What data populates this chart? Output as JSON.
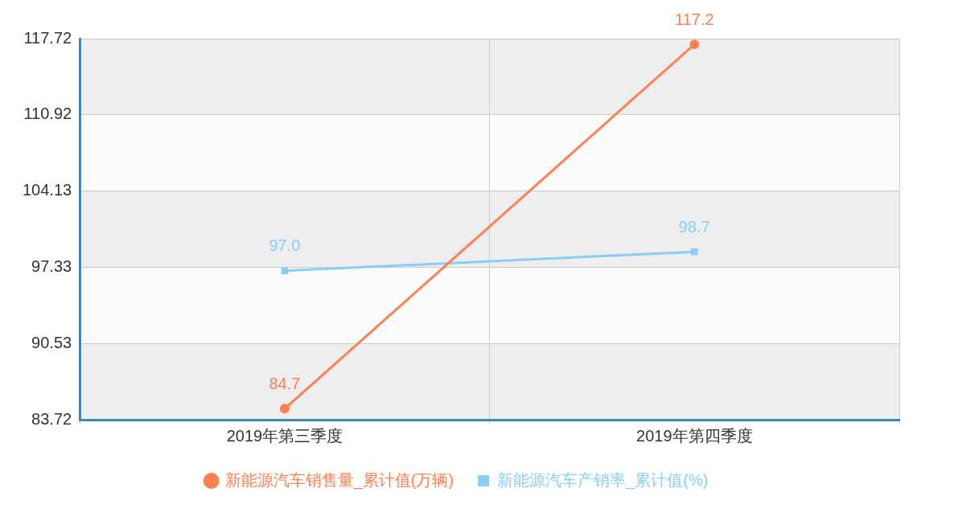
{
  "chart_data": {
    "type": "line",
    "categories": [
      "2019年第三季度",
      "2019年第四季度"
    ],
    "series": [
      {
        "name": "新能源汽车销售量_累计值(万辆)",
        "color": "#ff7f50",
        "values": [
          84.7,
          117.2
        ],
        "value_labels": [
          "84.7",
          "117.2"
        ],
        "marker": "circle"
      },
      {
        "name": "新能源汽车产销率_累计值(%)",
        "color": "#87cefa",
        "values": [
          97.0,
          98.7
        ],
        "value_labels": [
          "97.0",
          "98.7"
        ],
        "marker": "square"
      }
    ],
    "ylim": [
      83.72,
      117.72
    ],
    "yticks": [
      83.72,
      90.53,
      97.33,
      104.13,
      110.92,
      117.72
    ],
    "grid": true,
    "legend": "bottom",
    "line_style": "solid"
  }
}
